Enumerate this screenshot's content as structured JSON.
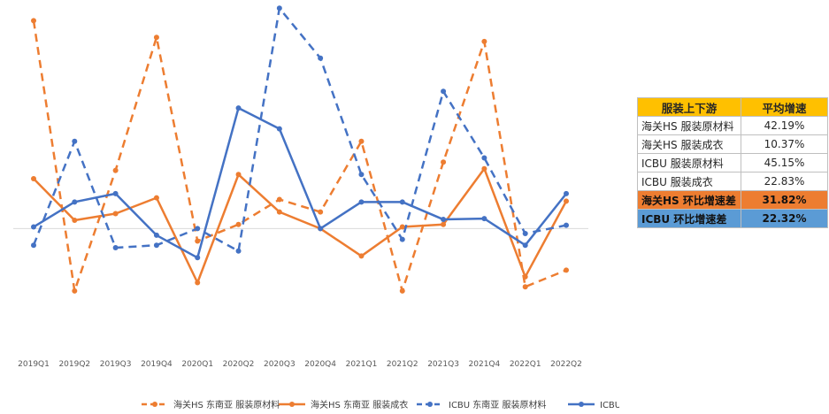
{
  "chart_data": {
    "type": "line",
    "categories": [
      "2019Q1",
      "2019Q2",
      "2019Q3",
      "2019Q4",
      "2020Q1",
      "2020Q2",
      "2020Q3",
      "2020Q4",
      "2021Q1",
      "2021Q2",
      "2021Q3",
      "2021Q4",
      "2022Q1",
      "2022Q2"
    ],
    "ylim": [
      -1.4,
      2.6
    ],
    "grid": false,
    "legend_position": "bottom",
    "series": [
      {
        "name": "海关HS 东南亚 服装原材料",
        "color": "#ed7d31",
        "dashed": true,
        "values": [
          2.5,
          -0.75,
          0.7,
          2.3,
          -0.15,
          0.05,
          0.35,
          0.2,
          1.05,
          -0.75,
          0.8,
          2.25,
          -0.7,
          -0.5
        ]
      },
      {
        "name": "海关HS 东南亚 服装成衣",
        "color": "#ed7d31",
        "dashed": false,
        "values": [
          0.6,
          0.1,
          0.18,
          0.37,
          -0.65,
          0.65,
          0.2,
          0.0,
          -0.33,
          0.02,
          0.05,
          0.72,
          -0.58,
          0.33
        ]
      },
      {
        "name": "ICBU 东南亚 服装原材料",
        "color": "#4472c4",
        "dashed": true,
        "values": [
          -0.2,
          1.05,
          -0.23,
          -0.2,
          0.0,
          -0.27,
          2.65,
          2.05,
          0.65,
          -0.13,
          1.65,
          0.85,
          -0.06,
          0.04
        ]
      },
      {
        "name": "ICBU 东南亚 服装成衣",
        "color": "#4472c4",
        "dashed": false,
        "values": [
          0.02,
          0.32,
          0.42,
          -0.08,
          -0.35,
          1.45,
          1.2,
          0.0,
          0.32,
          0.32,
          0.11,
          0.12,
          -0.2,
          0.42
        ]
      }
    ]
  },
  "summary_table": {
    "headers": {
      "category": "服装上下游",
      "value": "平均增速"
    },
    "rows": [
      {
        "label": "海关HS  服装原材料",
        "value": "42.19%"
      },
      {
        "label": "海关HS  服装成衣",
        "value": "10.37%"
      },
      {
        "label": "ICBU  服装原材料",
        "value": "45.15%"
      },
      {
        "label": "ICBU  服装成衣",
        "value": "22.83%"
      }
    ],
    "highlights": [
      {
        "label": "海关HS 环比增速差",
        "value": "31.82%",
        "color": "#ed7d31"
      },
      {
        "label": "ICBU 环比增速差",
        "value": "22.32%",
        "color": "#5b9bd5"
      }
    ]
  }
}
